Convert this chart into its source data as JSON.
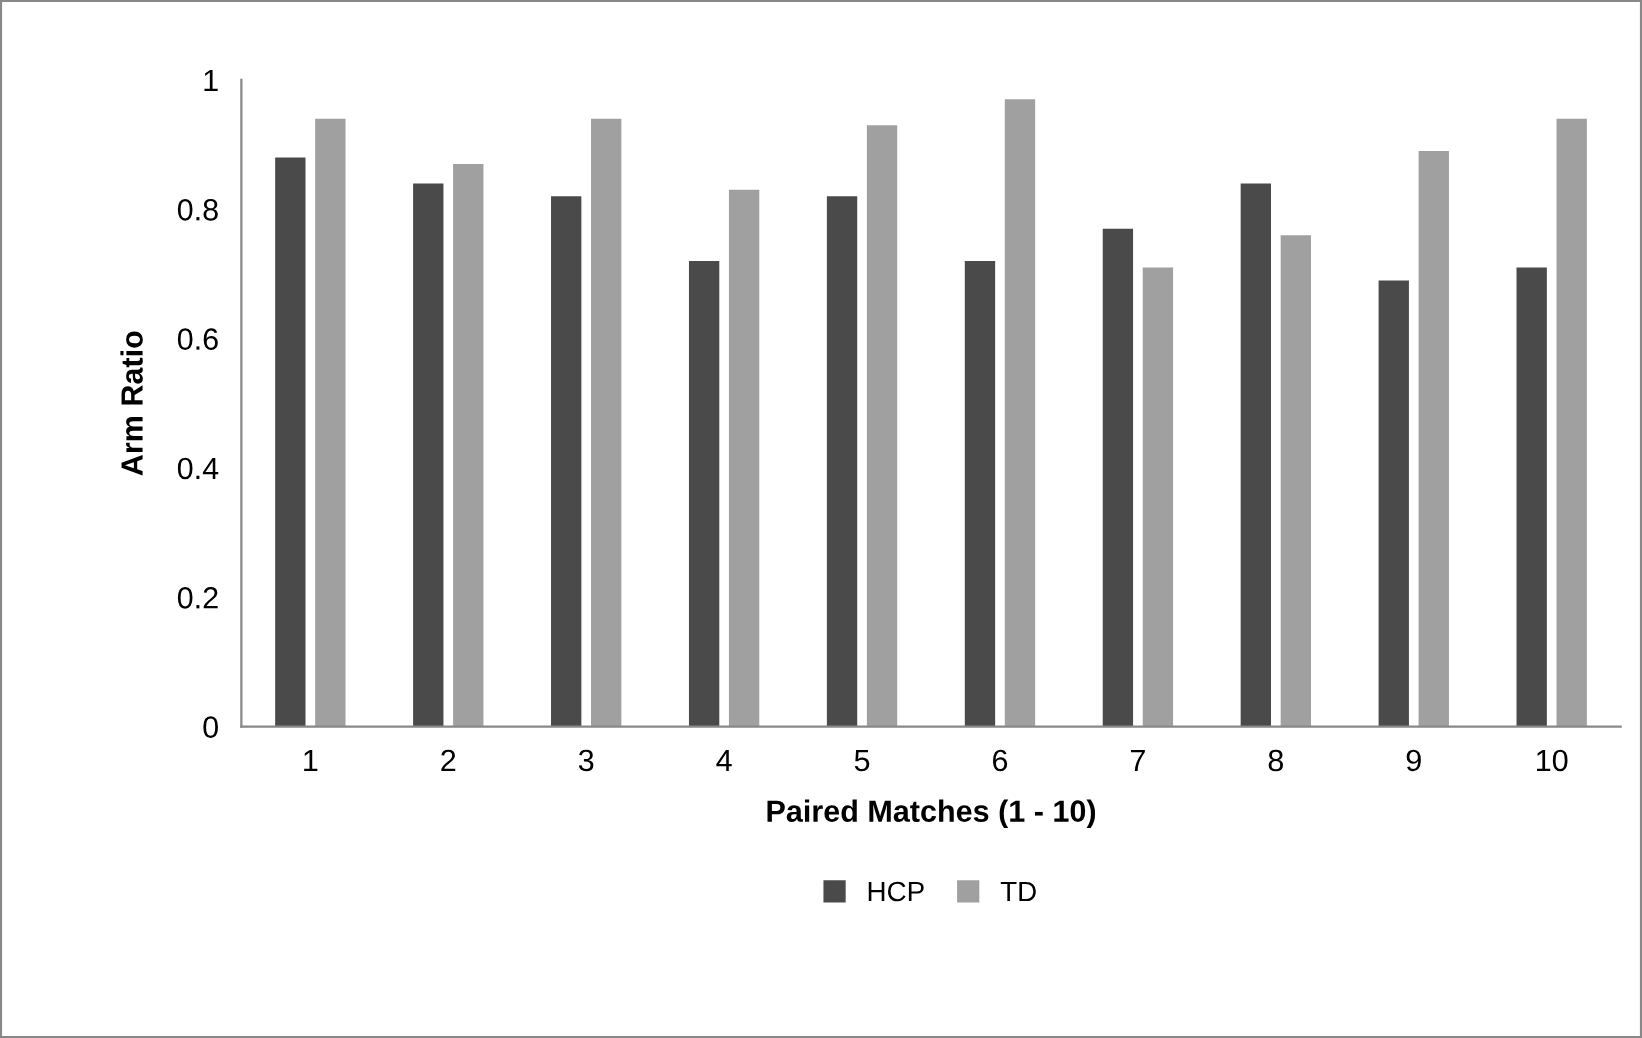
{
  "chart_data": {
    "type": "bar",
    "xlabel": "Paired Matches (1 - 10)",
    "ylabel": "Arm Ratio",
    "categories": [
      "1",
      "2",
      "3",
      "4",
      "5",
      "6",
      "7",
      "8",
      "9",
      "10"
    ],
    "series": [
      {
        "name": "HCP",
        "color": "#4a4a4a",
        "values": [
          0.88,
          0.84,
          0.82,
          0.72,
          0.82,
          0.72,
          0.77,
          0.84,
          0.69,
          0.71
        ]
      },
      {
        "name": "TD",
        "color": "#a0a0a0",
        "values": [
          0.94,
          0.87,
          0.94,
          0.83,
          0.93,
          0.97,
          0.71,
          0.76,
          0.89,
          0.94
        ]
      }
    ],
    "ylim": [
      0,
      1
    ],
    "yticks": [
      0,
      0.2,
      0.4,
      0.6,
      0.8,
      1
    ],
    "grid": false,
    "legend": "bottom"
  }
}
